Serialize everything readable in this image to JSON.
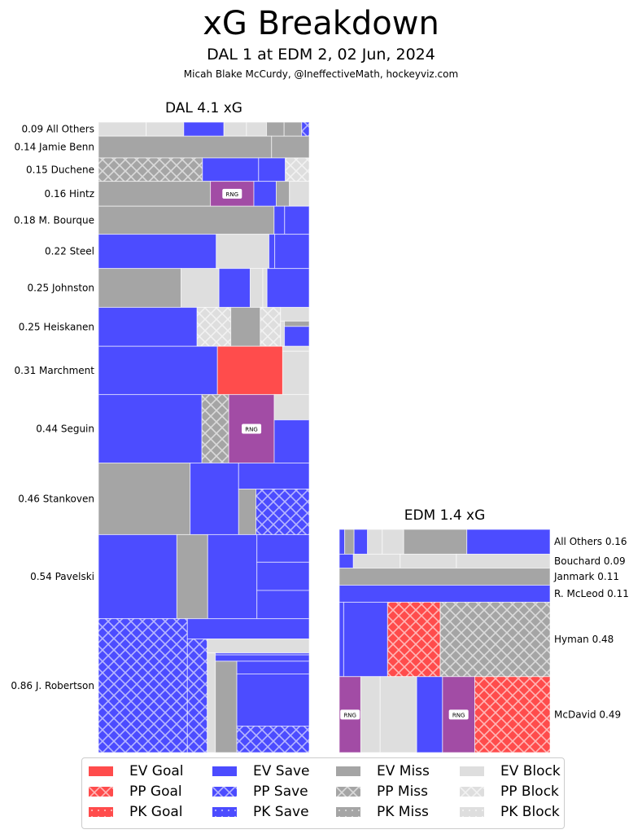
{
  "header": {
    "title": "xG Breakdown",
    "subtitle": "DAL 1 at EDM 2, 02 Jun, 2024",
    "credit": "Micah Blake McCurdy, @IneffectiveMath, hockeyviz.com"
  },
  "colors": {
    "goal": "#ff4c4c",
    "save": "#4c4cff",
    "miss": "#a5a5a5",
    "block": "#dedede",
    "rng": "#a24ca5",
    "pattern_line": "#ffffff"
  },
  "chart_data": {
    "type": "treemap",
    "title": "xG Breakdown",
    "teams": [
      {
        "name": "DAL",
        "title": "DAL 4.1 xG",
        "total_xg": 4.1,
        "label_side": "left",
        "players": [
          {
            "label": "0.09 All Others",
            "name": "All Others",
            "xg": 0.09,
            "shots": [
              [
                "EV Block",
                0.019
              ],
              [
                "EV Block",
                0.015
              ],
              [
                "EV Save",
                0.016
              ],
              [
                "EV Block",
                0.009
              ],
              [
                "EV Block",
                0.008
              ],
              [
                "EV Miss",
                0.007
              ],
              [
                "EV Miss",
                0.007
              ],
              [
                "PP Save",
                0.003
              ]
            ]
          },
          {
            "label": "0.14 Jamie Benn",
            "name": "Jamie Benn",
            "xg": 0.14,
            "shots": [
              [
                "EV Miss",
                0.115
              ],
              [
                "EV Miss",
                0.025
              ]
            ]
          },
          {
            "label": "0.15 Duchene",
            "name": "Duchene",
            "xg": 0.15,
            "shots": [
              [
                "PP Miss",
                0.074
              ],
              [
                "EV Save",
                0.04
              ],
              [
                "EV Save",
                0.019
              ],
              [
                "PP Block",
                0.017
              ]
            ]
          },
          {
            "label": "0.16 Hintz",
            "name": "Hintz",
            "xg": 0.16,
            "shots": [
              [
                "EV Miss",
                0.085
              ],
              [
                "RNG",
                0.033
              ],
              [
                "EV Save",
                0.017
              ],
              [
                "EV Miss",
                0.01
              ],
              [
                "EV Block",
                0.015
              ]
            ]
          },
          {
            "label": "0.18 M. Bourque",
            "name": "M. Bourque",
            "xg": 0.18,
            "shots": [
              [
                "EV Miss",
                0.15
              ],
              [
                "EV Save",
                0.009
              ],
              [
                "EV Save",
                0.021
              ]
            ]
          },
          {
            "label": "0.22 Steel",
            "name": "Steel",
            "xg": 0.22,
            "shots": [
              [
                "EV Save",
                0.123
              ],
              [
                "EV Block",
                0.055
              ],
              [
                "EV Save",
                0.006
              ],
              [
                "EV Save",
                0.036
              ]
            ]
          },
          {
            "label": "0.25 Johnston",
            "name": "Johnston",
            "xg": 0.25,
            "shots": [
              [
                "EV Miss",
                0.098
              ],
              [
                "EV Block",
                0.045
              ],
              [
                "EV Save",
                0.037
              ],
              [
                "EV Block",
                0.015
              ],
              [
                "EV Block",
                0.005
              ],
              [
                "EV Save",
                0.05
              ]
            ]
          },
          {
            "label": "0.25 Heiskanen",
            "name": "Heiskanen",
            "xg": 0.25,
            "shots": [
              [
                "EV Save",
                0.117
              ],
              [
                "PP Block",
                0.04
              ],
              [
                "EV Miss",
                0.035
              ],
              [
                "PP Block",
                0.024
              ],
              [
                "EV Block",
                0.012
              ],
              [
                "EV Block",
                0.003
              ],
              [
                "EV Miss",
                0.004
              ],
              [
                "EV Save",
                0.015
              ]
            ]
          },
          {
            "label": "0.31 Marchment",
            "name": "Marchment",
            "xg": 0.31,
            "shots": [
              [
                "EV Save",
                0.175
              ],
              [
                "EV Goal",
                0.096
              ],
              [
                "EV Block",
                0.004
              ],
              [
                "EV Block",
                0.035
              ]
            ]
          },
          {
            "label": "0.44 Seguin",
            "name": "Seguin",
            "xg": 0.44,
            "shots": [
              [
                "EV Save",
                0.216
              ],
              [
                "PP Miss",
                0.056
              ],
              [
                "RNG",
                0.095
              ],
              [
                "EV Block",
                0.027
              ],
              [
                "EV Save",
                0.046
              ]
            ]
          },
          {
            "label": "0.46 Stankoven",
            "name": "Stankoven",
            "xg": 0.46,
            "shots": [
              [
                "EV Miss",
                0.2
              ],
              [
                "EV Save",
                0.106
              ],
              [
                "EV Save",
                0.056
              ],
              [
                "EV Miss",
                0.024
              ],
              [
                "PP Save",
                0.074
              ]
            ]
          },
          {
            "label": "0.54 Pavelski",
            "name": "Pavelski",
            "xg": 0.54,
            "shots": [
              [
                "EV Save",
                0.201
              ],
              [
                "EV Miss",
                0.079
              ],
              [
                "EV Save",
                0.126
              ],
              [
                "EV Save",
                0.044
              ],
              [
                "EV Save",
                0.045
              ],
              [
                "EV Save",
                0.045
              ]
            ]
          },
          {
            "label": "0.86 J. Robertson",
            "name": "J. Robertson",
            "xg": 0.86,
            "shots": [
              [
                "PP Save",
                0.4
              ],
              [
                "EV Save",
                0.083
              ],
              [
                "PP Save",
                0.076
              ],
              [
                "EV Block",
                0.048
              ],
              [
                "EV Block",
                0.027
              ],
              [
                "EV Save",
                0.006
              ],
              [
                "EV Save",
                0.02
              ],
              [
                "EV Miss",
                0.066
              ],
              [
                "EV Save",
                0.031
              ],
              [
                "EV Save",
                0.127
              ],
              [
                "PP Save",
                0.064
              ]
            ]
          }
        ]
      },
      {
        "name": "EDM",
        "title": "EDM 1.4 xG",
        "total_xg": 1.4,
        "label_side": "right",
        "players": [
          {
            "label": "All Others 0.16",
            "name": "All Others",
            "xg": 0.16,
            "shots": [
              [
                "EV Save",
                0.004
              ],
              [
                "EV Miss",
                0.007
              ],
              [
                "EV Save",
                0.01
              ],
              [
                "EV Block",
                0.011
              ],
              [
                "EV Block",
                0.016
              ],
              [
                "EV Miss",
                0.047
              ],
              [
                "EV Save",
                0.062
              ]
            ]
          },
          {
            "label": "Bouchard 0.09",
            "name": "Bouchard",
            "xg": 0.09,
            "shots": [
              [
                "EV Save",
                0.006
              ],
              [
                "EV Block",
                0.02
              ],
              [
                "EV Block",
                0.024
              ],
              [
                "EV Block",
                0.04
              ]
            ]
          },
          {
            "label": "Janmark 0.11",
            "name": "Janmark",
            "xg": 0.11,
            "shots": [
              [
                "EV Miss",
                0.11
              ]
            ]
          },
          {
            "label": "R. McLeod 0.11",
            "name": "R. McLeod",
            "xg": 0.11,
            "shots": [
              [
                "EV Save",
                0.11
              ]
            ]
          },
          {
            "label": "Hyman 0.48",
            "name": "Hyman",
            "xg": 0.48,
            "shots": [
              [
                "EV Save",
                0.01
              ],
              [
                "EV Save",
                0.1
              ],
              [
                "PP Goal",
                0.12
              ],
              [
                "PP Miss",
                0.25
              ]
            ]
          },
          {
            "label": "McDavid 0.49",
            "name": "McDavid",
            "xg": 0.49,
            "shots": [
              [
                "RNG",
                0.05
              ],
              [
                "EV Block",
                0.045
              ],
              [
                "EV Block",
                0.085
              ],
              [
                "EV Save",
                0.06
              ],
              [
                "RNG",
                0.075
              ],
              [
                "PP Goal",
                0.175
              ]
            ]
          }
        ]
      }
    ],
    "legend": {
      "placement": "bottom-center",
      "entries": [
        "EV Goal",
        "EV Save",
        "EV Miss",
        "EV Block",
        "PP Goal",
        "PP Save",
        "PP Miss",
        "PP Block",
        "PK Goal",
        "PK Save",
        "PK Miss",
        "PK Block"
      ]
    },
    "badge_label": "RNG"
  }
}
